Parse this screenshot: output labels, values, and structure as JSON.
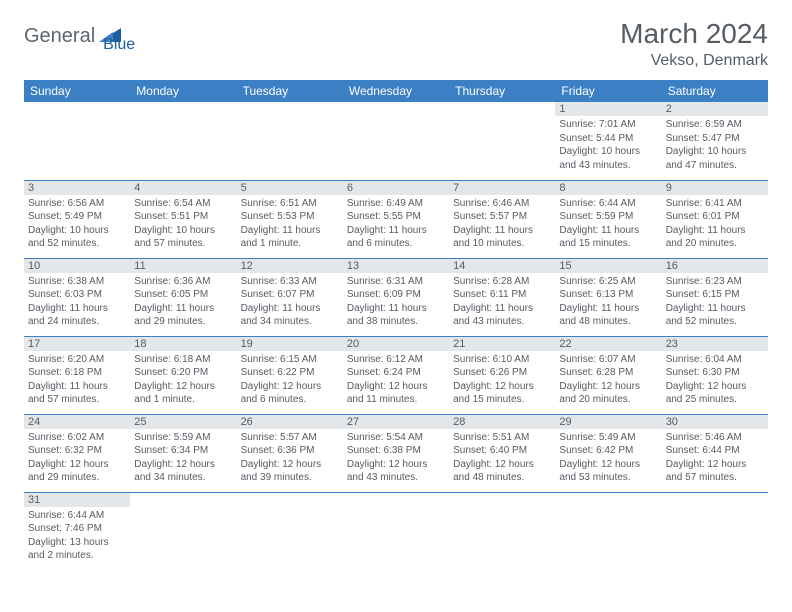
{
  "logo": {
    "text1": "General",
    "text2": "Blue"
  },
  "title": "March 2024",
  "location": "Vekso, Denmark",
  "dayHeaders": [
    "Sunday",
    "Monday",
    "Tuesday",
    "Wednesday",
    "Thursday",
    "Friday",
    "Saturday"
  ],
  "colors": {
    "headerBg": "#3b7fc4",
    "headerText": "#ffffff",
    "dayNumBg": "#e4e7ea",
    "text": "#555c63",
    "border": "#3b7fc4",
    "logoGray": "#5c6770",
    "logoBlue": "#1a5f9e"
  },
  "weeks": [
    [
      null,
      null,
      null,
      null,
      null,
      {
        "n": "1",
        "sunrise": "Sunrise: 7:01 AM",
        "sunset": "Sunset: 5:44 PM",
        "daylight": "Daylight: 10 hours and 43 minutes."
      },
      {
        "n": "2",
        "sunrise": "Sunrise: 6:59 AM",
        "sunset": "Sunset: 5:47 PM",
        "daylight": "Daylight: 10 hours and 47 minutes."
      }
    ],
    [
      {
        "n": "3",
        "sunrise": "Sunrise: 6:56 AM",
        "sunset": "Sunset: 5:49 PM",
        "daylight": "Daylight: 10 hours and 52 minutes."
      },
      {
        "n": "4",
        "sunrise": "Sunrise: 6:54 AM",
        "sunset": "Sunset: 5:51 PM",
        "daylight": "Daylight: 10 hours and 57 minutes."
      },
      {
        "n": "5",
        "sunrise": "Sunrise: 6:51 AM",
        "sunset": "Sunset: 5:53 PM",
        "daylight": "Daylight: 11 hours and 1 minute."
      },
      {
        "n": "6",
        "sunrise": "Sunrise: 6:49 AM",
        "sunset": "Sunset: 5:55 PM",
        "daylight": "Daylight: 11 hours and 6 minutes."
      },
      {
        "n": "7",
        "sunrise": "Sunrise: 6:46 AM",
        "sunset": "Sunset: 5:57 PM",
        "daylight": "Daylight: 11 hours and 10 minutes."
      },
      {
        "n": "8",
        "sunrise": "Sunrise: 6:44 AM",
        "sunset": "Sunset: 5:59 PM",
        "daylight": "Daylight: 11 hours and 15 minutes."
      },
      {
        "n": "9",
        "sunrise": "Sunrise: 6:41 AM",
        "sunset": "Sunset: 6:01 PM",
        "daylight": "Daylight: 11 hours and 20 minutes."
      }
    ],
    [
      {
        "n": "10",
        "sunrise": "Sunrise: 6:38 AM",
        "sunset": "Sunset: 6:03 PM",
        "daylight": "Daylight: 11 hours and 24 minutes."
      },
      {
        "n": "11",
        "sunrise": "Sunrise: 6:36 AM",
        "sunset": "Sunset: 6:05 PM",
        "daylight": "Daylight: 11 hours and 29 minutes."
      },
      {
        "n": "12",
        "sunrise": "Sunrise: 6:33 AM",
        "sunset": "Sunset: 6:07 PM",
        "daylight": "Daylight: 11 hours and 34 minutes."
      },
      {
        "n": "13",
        "sunrise": "Sunrise: 6:31 AM",
        "sunset": "Sunset: 6:09 PM",
        "daylight": "Daylight: 11 hours and 38 minutes."
      },
      {
        "n": "14",
        "sunrise": "Sunrise: 6:28 AM",
        "sunset": "Sunset: 6:11 PM",
        "daylight": "Daylight: 11 hours and 43 minutes."
      },
      {
        "n": "15",
        "sunrise": "Sunrise: 6:25 AM",
        "sunset": "Sunset: 6:13 PM",
        "daylight": "Daylight: 11 hours and 48 minutes."
      },
      {
        "n": "16",
        "sunrise": "Sunrise: 6:23 AM",
        "sunset": "Sunset: 6:15 PM",
        "daylight": "Daylight: 11 hours and 52 minutes."
      }
    ],
    [
      {
        "n": "17",
        "sunrise": "Sunrise: 6:20 AM",
        "sunset": "Sunset: 6:18 PM",
        "daylight": "Daylight: 11 hours and 57 minutes."
      },
      {
        "n": "18",
        "sunrise": "Sunrise: 6:18 AM",
        "sunset": "Sunset: 6:20 PM",
        "daylight": "Daylight: 12 hours and 1 minute."
      },
      {
        "n": "19",
        "sunrise": "Sunrise: 6:15 AM",
        "sunset": "Sunset: 6:22 PM",
        "daylight": "Daylight: 12 hours and 6 minutes."
      },
      {
        "n": "20",
        "sunrise": "Sunrise: 6:12 AM",
        "sunset": "Sunset: 6:24 PM",
        "daylight": "Daylight: 12 hours and 11 minutes."
      },
      {
        "n": "21",
        "sunrise": "Sunrise: 6:10 AM",
        "sunset": "Sunset: 6:26 PM",
        "daylight": "Daylight: 12 hours and 15 minutes."
      },
      {
        "n": "22",
        "sunrise": "Sunrise: 6:07 AM",
        "sunset": "Sunset: 6:28 PM",
        "daylight": "Daylight: 12 hours and 20 minutes."
      },
      {
        "n": "23",
        "sunrise": "Sunrise: 6:04 AM",
        "sunset": "Sunset: 6:30 PM",
        "daylight": "Daylight: 12 hours and 25 minutes."
      }
    ],
    [
      {
        "n": "24",
        "sunrise": "Sunrise: 6:02 AM",
        "sunset": "Sunset: 6:32 PM",
        "daylight": "Daylight: 12 hours and 29 minutes."
      },
      {
        "n": "25",
        "sunrise": "Sunrise: 5:59 AM",
        "sunset": "Sunset: 6:34 PM",
        "daylight": "Daylight: 12 hours and 34 minutes."
      },
      {
        "n": "26",
        "sunrise": "Sunrise: 5:57 AM",
        "sunset": "Sunset: 6:36 PM",
        "daylight": "Daylight: 12 hours and 39 minutes."
      },
      {
        "n": "27",
        "sunrise": "Sunrise: 5:54 AM",
        "sunset": "Sunset: 6:38 PM",
        "daylight": "Daylight: 12 hours and 43 minutes."
      },
      {
        "n": "28",
        "sunrise": "Sunrise: 5:51 AM",
        "sunset": "Sunset: 6:40 PM",
        "daylight": "Daylight: 12 hours and 48 minutes."
      },
      {
        "n": "29",
        "sunrise": "Sunrise: 5:49 AM",
        "sunset": "Sunset: 6:42 PM",
        "daylight": "Daylight: 12 hours and 53 minutes."
      },
      {
        "n": "30",
        "sunrise": "Sunrise: 5:46 AM",
        "sunset": "Sunset: 6:44 PM",
        "daylight": "Daylight: 12 hours and 57 minutes."
      }
    ],
    [
      {
        "n": "31",
        "sunrise": "Sunrise: 6:44 AM",
        "sunset": "Sunset: 7:46 PM",
        "daylight": "Daylight: 13 hours and 2 minutes."
      },
      null,
      null,
      null,
      null,
      null,
      null
    ]
  ]
}
